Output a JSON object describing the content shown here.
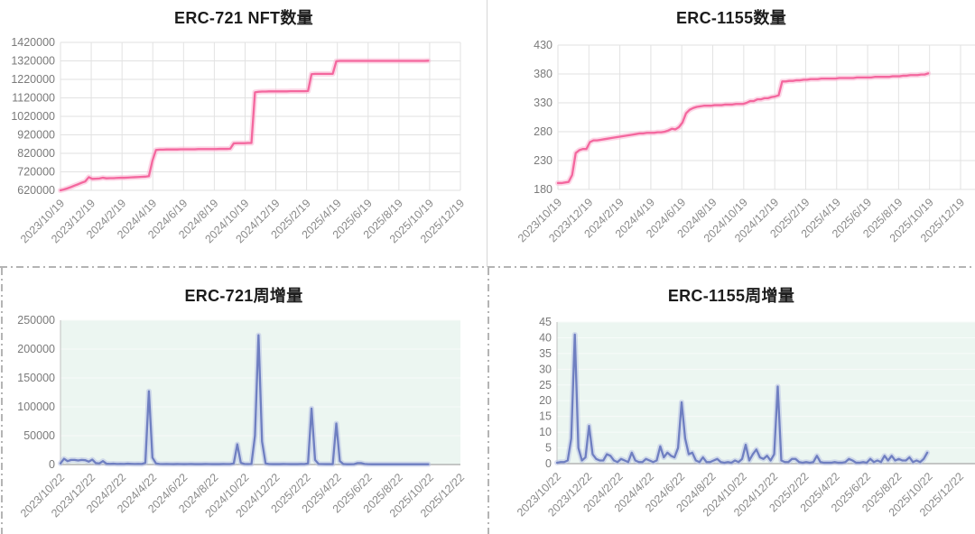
{
  "page": {
    "background": "#ffffff"
  },
  "chart_data": [
    {
      "id": "erc721-total",
      "type": "line",
      "title": "ERC-721 NFT数量",
      "line_color": "#f4679e",
      "glow_color": "#f9b8d3",
      "plot_bg": "#ffffff",
      "grid": "both",
      "grid_color": "#e2e2e2",
      "ylim": [
        620000,
        1420000
      ],
      "y_ticks": [
        "620000",
        "720000",
        "820000",
        "920000",
        "1020000",
        "1120000",
        "1220000",
        "1320000",
        "1420000"
      ],
      "x_labels": [
        "2023/10/19",
        "2023/12/19",
        "2024/2/19",
        "2024/4/19",
        "2024/6/19",
        "2024/8/19",
        "2024/10/19",
        "2024/12/19",
        "2025/2/19",
        "2025/4/19",
        "2025/6/19",
        "2025/8/19",
        "2025/10/19",
        "2025/12/19"
      ],
      "values": [
        620000,
        625000,
        631000,
        638000,
        646000,
        653000,
        661000,
        668000,
        691000,
        682000,
        683000,
        684000,
        688000,
        685000,
        686000,
        686000,
        687000,
        688000,
        688000,
        689000,
        690000,
        691000,
        692000,
        693000,
        694000,
        697000,
        780000,
        838000,
        840000,
        840000,
        841000,
        841000,
        841000,
        841000,
        842000,
        842000,
        842000,
        842000,
        842000,
        843000,
        843000,
        843000,
        843000,
        843000,
        843000,
        844000,
        844000,
        844000,
        845000,
        874000,
        875000,
        875000,
        875000,
        876000,
        876000,
        1150000,
        1153000,
        1154000,
        1154000,
        1155000,
        1155000,
        1155000,
        1155000,
        1155000,
        1155000,
        1156000,
        1156000,
        1156000,
        1156000,
        1156000,
        1157000,
        1248000,
        1250000,
        1250000,
        1250000,
        1250000,
        1250000,
        1250000,
        1318000,
        1320000,
        1320000,
        1320000,
        1320000,
        1320000,
        1320000,
        1320000,
        1320000,
        1320000,
        1320000,
        1320000,
        1320000,
        1320000,
        1320000,
        1320000,
        1320000,
        1320000,
        1320000,
        1320000,
        1320000,
        1320000,
        1320000,
        1320000,
        1320000,
        1320000,
        1321000
      ]
    },
    {
      "id": "erc1155-total",
      "type": "line",
      "title": "ERC-1155数量",
      "line_color": "#f4679e",
      "glow_color": "#f9b8d3",
      "plot_bg": "#ffffff",
      "grid": "both",
      "grid_color": "#e2e2e2",
      "ylim": [
        180,
        430
      ],
      "y_ticks": [
        "180",
        "230",
        "280",
        "330",
        "380",
        "430"
      ],
      "x_labels": [
        "2023/10/19",
        "2023/12/19",
        "2024/2/19",
        "2024/4/19",
        "2024/6/19",
        "2024/8/19",
        "2024/10/19",
        "2024/12/19",
        "2025/2/19",
        "2025/4/19",
        "2025/6/19",
        "2025/8/19",
        "2025/10/19",
        "2025/12/19"
      ],
      "values": [
        191,
        191,
        192,
        193,
        205,
        243,
        248,
        250,
        250,
        262,
        265,
        265,
        266,
        267,
        268,
        269,
        270,
        271,
        272,
        273,
        274,
        275,
        276,
        277,
        277,
        278,
        278,
        278,
        279,
        279,
        280,
        282,
        285,
        284,
        288,
        296,
        312,
        318,
        321,
        323,
        324,
        325,
        325,
        325,
        326,
        326,
        326,
        327,
        327,
        327,
        328,
        328,
        328,
        330,
        333,
        333,
        336,
        336,
        338,
        338,
        340,
        341,
        343,
        367,
        367,
        368,
        368,
        369,
        369,
        370,
        370,
        371,
        371,
        371,
        372,
        372,
        372,
        372,
        372,
        373,
        373,
        373,
        373,
        373,
        374,
        374,
        374,
        374,
        374,
        375,
        375,
        375,
        375,
        375,
        376,
        376,
        376,
        377,
        377,
        378,
        378,
        378,
        379,
        379,
        381
      ]
    },
    {
      "id": "erc721-weekly",
      "type": "line",
      "title": "ERC-721周增量",
      "line_color": "#6f7fc1",
      "glow_color": "#b9c2e4",
      "plot_bg": "#ecf6f1",
      "grid": "horizontal",
      "grid_color": "#f7fbf9",
      "ylim": [
        0,
        250000
      ],
      "y_ticks": [
        "0",
        "50000",
        "100000",
        "150000",
        "200000",
        "250000"
      ],
      "x_labels": [
        "2023/10/22",
        "2023/12/22",
        "2024/2/22",
        "2024/4/22",
        "2024/6/22",
        "2024/8/22",
        "2024/10/22",
        "2024/12/22",
        "2025/2/22",
        "2025/4/22",
        "2025/6/22",
        "2025/8/22",
        "2025/10/22",
        "2025/12/22"
      ],
      "values": [
        2000,
        10000,
        6000,
        8000,
        8000,
        7000,
        8000,
        7500,
        5000,
        8500,
        2500,
        2000,
        6000,
        1500,
        1200,
        1500,
        1000,
        1200,
        1000,
        1500,
        1200,
        1000,
        1200,
        1000,
        3000,
        127000,
        12000,
        2000,
        1000,
        800,
        900,
        800,
        700,
        900,
        800,
        700,
        800,
        900,
        700,
        800,
        700,
        900,
        800,
        700,
        800,
        700,
        900,
        800,
        800,
        2000,
        35000,
        3000,
        1000,
        800,
        1000,
        50000,
        224000,
        40000,
        2000,
        800,
        700,
        800,
        700,
        900,
        800,
        700,
        800,
        700,
        900,
        800,
        2000,
        97000,
        8000,
        1000,
        800,
        700,
        800,
        700,
        71000,
        6000,
        800,
        500,
        500,
        600,
        2500,
        2500,
        1000,
        600,
        500,
        600,
        500,
        600,
        500,
        600,
        500,
        600,
        500,
        600,
        500,
        600,
        500,
        600,
        500,
        600,
        500
      ]
    },
    {
      "id": "erc1155-weekly",
      "type": "line",
      "title": "ERC-1155周增量",
      "line_color": "#6f7fc1",
      "glow_color": "#b9c2e4",
      "plot_bg": "#ecf6f1",
      "grid": "horizontal",
      "grid_color": "#f7fbf9",
      "ylim": [
        0,
        45
      ],
      "y_ticks": [
        "0",
        "5",
        "10",
        "15",
        "20",
        "25",
        "30",
        "35",
        "40",
        "45"
      ],
      "x_labels": [
        "2023/10/22",
        "2023/12/22",
        "2024/2/22",
        "2024/4/22",
        "2024/6/22",
        "2024/8/22",
        "2024/10/22",
        "2024/12/22",
        "2025/2/22",
        "2025/4/22",
        "2025/6/22",
        "2025/8/22",
        "2025/10/22",
        "2025/12/22"
      ],
      "values": [
        0.3,
        0.5,
        0.5,
        1,
        8,
        41,
        5,
        1,
        2,
        12,
        3,
        1.5,
        1,
        1,
        3,
        2.5,
        1,
        0.5,
        1.5,
        1,
        0.5,
        3.5,
        1,
        0.5,
        0.5,
        1.5,
        1,
        0.5,
        1,
        5.5,
        2,
        3.5,
        2.5,
        2,
        5,
        19.5,
        8,
        3,
        3.5,
        1,
        0.5,
        2,
        0.5,
        0.5,
        1,
        1.5,
        0.5,
        0.3,
        0.5,
        0.3,
        1,
        0.5,
        1.5,
        6,
        1,
        3,
        4.5,
        2,
        1.5,
        2.5,
        1,
        3,
        24.5,
        1,
        0.5,
        0.5,
        1.5,
        1.5,
        0.5,
        0.3,
        0.5,
        0.3,
        0.5,
        2.5,
        0.5,
        0.3,
        0.3,
        0.3,
        0.5,
        0.3,
        0.3,
        0.5,
        1.5,
        1,
        0.3,
        0.3,
        0.5,
        0.3,
        1.5,
        0.5,
        1,
        0.5,
        2.5,
        1,
        2.5,
        1,
        1.5,
        1,
        1,
        2,
        0.5,
        1,
        0.5,
        1.5,
        3.5
      ]
    }
  ]
}
